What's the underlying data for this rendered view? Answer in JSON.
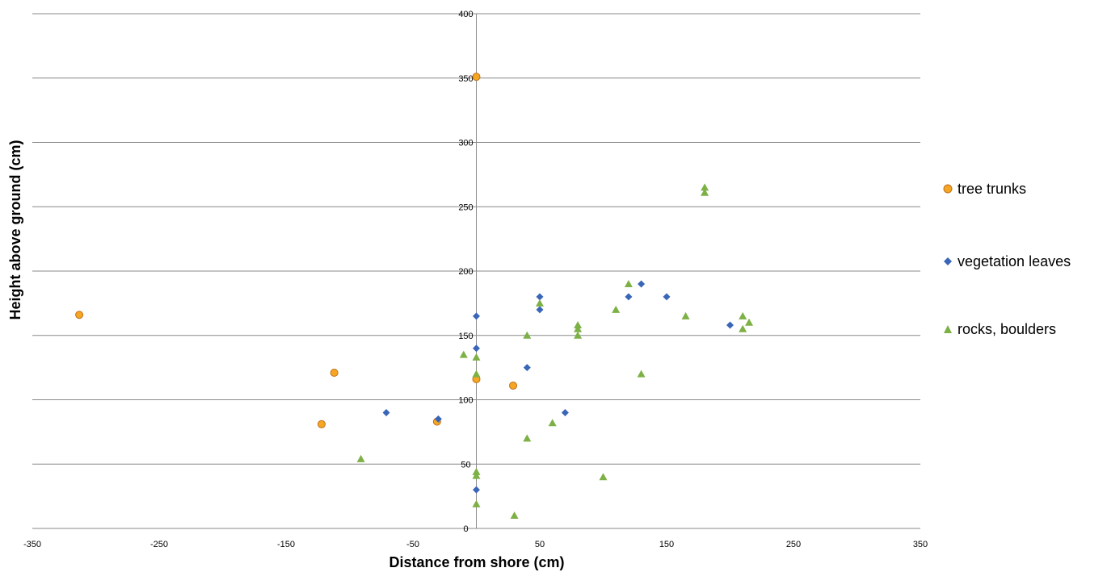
{
  "chart_data": {
    "type": "scatter",
    "title": "",
    "xlabel": "Distance from shore (cm)",
    "ylabel": "Height above ground (cm)",
    "xlim": [
      -350,
      350
    ],
    "ylim": [
      0,
      400
    ],
    "x_ticks": [
      "-350",
      "-250",
      "-150",
      "-50",
      "50",
      "150",
      "250",
      "350"
    ],
    "y_ticks": [
      "0",
      "50",
      "100",
      "150",
      "200",
      "250",
      "300",
      "350",
      "400"
    ],
    "grid": "horizontal",
    "legend_position": "right",
    "series": [
      {
        "name": "tree trunks",
        "marker": "circle",
        "color": "#F5A623",
        "stroke": "#C0701A",
        "points": [
          [
            -313,
            166
          ],
          [
            -112,
            121
          ],
          [
            -122,
            81
          ],
          [
            -31,
            83
          ],
          [
            0,
            351
          ],
          [
            0,
            116
          ],
          [
            29,
            111
          ]
        ]
      },
      {
        "name": "vegetation leaves",
        "marker": "diamond",
        "color": "#3A66B8",
        "points": [
          [
            -71,
            90
          ],
          [
            -30,
            85
          ],
          [
            0,
            165
          ],
          [
            0,
            140
          ],
          [
            0,
            30
          ],
          [
            40,
            125
          ],
          [
            50,
            180
          ],
          [
            50,
            170
          ],
          [
            70,
            90
          ],
          [
            120,
            180
          ],
          [
            130,
            190
          ],
          [
            150,
            180
          ],
          [
            200,
            158
          ]
        ]
      },
      {
        "name": "rocks, boulders",
        "marker": "triangle",
        "color": "#7DB045",
        "points": [
          [
            -91,
            54
          ],
          [
            -10,
            135
          ],
          [
            0,
            133
          ],
          [
            0,
            120
          ],
          [
            0,
            44
          ],
          [
            0,
            41
          ],
          [
            0,
            19
          ],
          [
            30,
            10
          ],
          [
            40,
            150
          ],
          [
            40,
            70
          ],
          [
            50,
            175
          ],
          [
            60,
            82
          ],
          [
            80,
            158
          ],
          [
            80,
            155
          ],
          [
            80,
            150
          ],
          [
            100,
            40
          ],
          [
            110,
            170
          ],
          [
            120,
            190
          ],
          [
            130,
            120
          ],
          [
            165,
            165
          ],
          [
            180,
            265
          ],
          [
            180,
            261
          ],
          [
            210,
            165
          ],
          [
            210,
            155
          ],
          [
            215,
            160
          ]
        ]
      }
    ]
  }
}
